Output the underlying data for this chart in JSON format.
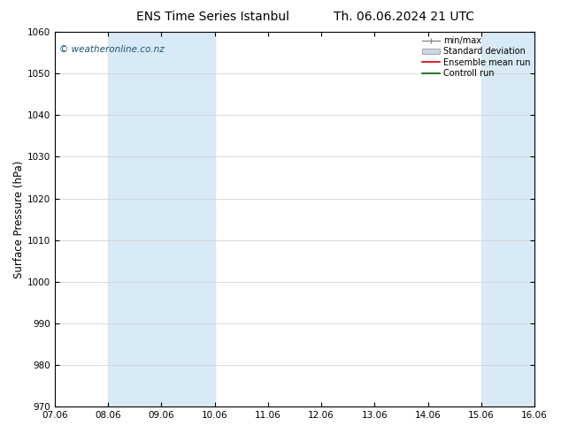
{
  "title_left": "ENS Time Series Istanbul",
  "title_right": "Th. 06.06.2024 21 UTC",
  "ylabel": "Surface Pressure (hPa)",
  "ylim": [
    970,
    1060
  ],
  "yticks": [
    970,
    980,
    990,
    1000,
    1010,
    1020,
    1030,
    1040,
    1050,
    1060
  ],
  "xtick_labels": [
    "07.06",
    "08.06",
    "09.06",
    "10.06",
    "11.06",
    "12.06",
    "13.06",
    "14.06",
    "15.06",
    "16.06"
  ],
  "blue_band_ranges": [
    [
      1,
      3
    ],
    [
      8,
      9
    ],
    [
      9,
      9.5
    ]
  ],
  "blue_band_color": "#d8eaf5",
  "watermark": "© weatheronline.co.nz",
  "legend_labels": [
    "min/max",
    "Standard deviation",
    "Ensemble mean run",
    "Controll run"
  ],
  "background_color": "#ffffff",
  "title_fontsize": 10,
  "tick_fontsize": 7.5,
  "ylabel_fontsize": 8.5,
  "watermark_color": "#1a5276"
}
